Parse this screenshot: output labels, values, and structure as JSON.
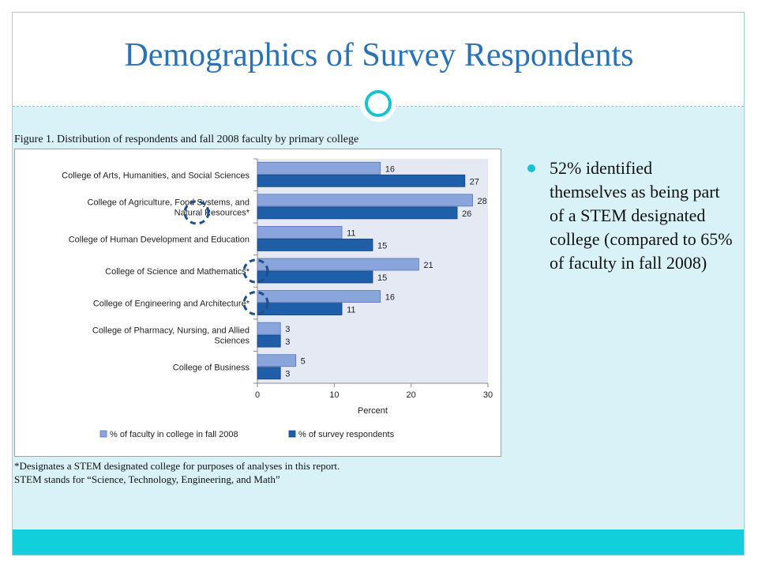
{
  "slide": {
    "title": "Demographics of Survey Respondents",
    "figure_caption": "Figure 1. Distribution of respondents and fall 2008 faculty by primary college",
    "footnote_lines": [
      "*Designates a STEM designated college for purposes of analyses in this report.",
      "STEM stands for “Science, Technology, Engineering, and Math”"
    ],
    "bullets": [
      "52% identified themselves as being part of a STEM designated college (compared to 65% of faculty in fall 2008)"
    ]
  },
  "colors": {
    "title": "#2a72b8",
    "accent": "#17c3d2",
    "band": "#d9f2f8",
    "bottom_band": "#11cfdb",
    "plot_bg": "#e4e9f4",
    "series_faculty": "#8aa5dc",
    "series_respondents": "#1f5ea8",
    "stem_marker": "#1f4f8a"
  },
  "chart_data": {
    "type": "bar",
    "orientation": "horizontal",
    "categories": [
      [
        "College of Arts, Humanities, and Social Sciences"
      ],
      [
        "College of Agriculture, Food Systems, and",
        "Natural Resources*"
      ],
      [
        "College of Human Development and Education"
      ],
      [
        "College of Science and Mathematics*"
      ],
      [
        "College of Engineering and Architecture*"
      ],
      [
        "College of Pharmacy, Nursing, and Allied",
        "Sciences"
      ],
      [
        "College of Business"
      ]
    ],
    "stem_flags": [
      false,
      true,
      false,
      true,
      true,
      false,
      false
    ],
    "series": [
      {
        "name": "% of faculty in college in fall 2008",
        "values": [
          16,
          28,
          11,
          21,
          16,
          3,
          5
        ]
      },
      {
        "name": "% of survey respondents",
        "values": [
          27,
          26,
          15,
          15,
          11,
          3,
          3
        ]
      }
    ],
    "xlabel": "Percent",
    "xlim": [
      0,
      30
    ],
    "xticks": [
      0,
      10,
      20,
      30
    ],
    "legend_position": "bottom"
  }
}
